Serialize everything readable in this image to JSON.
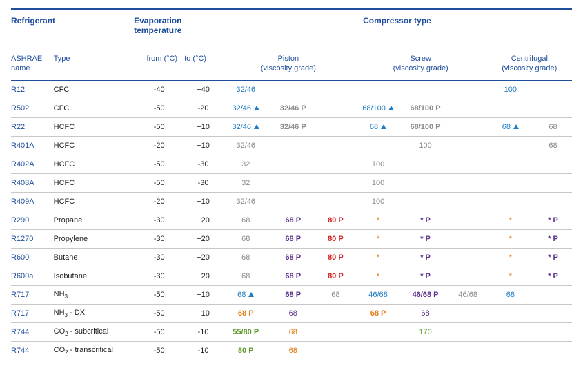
{
  "headers": {
    "refrigerant": "Refrigerant",
    "evap": "Evaporation\ntemperature",
    "comp": "Compressor type",
    "ashrae": "ASHRAE\nname",
    "type": "Type",
    "from": "from (°C)",
    "to": "to (°C)",
    "piston": "Piston\n(viscosity grade)",
    "screw": "Screw\n(viscosity grade)",
    "centrifugal": "Centrifugal\n(viscosity grade)"
  },
  "rows": [
    {
      "name": "R12",
      "type": "CFC",
      "from": "-40",
      "to": "+40",
      "p": [
        {
          "t": "32/46",
          "c": "blue"
        }
      ],
      "s": [],
      "c": [
        {
          "t": "100",
          "c": "blue"
        }
      ]
    },
    {
      "name": "R502",
      "type": "CFC",
      "from": "-50",
      "to": "-20",
      "p": [
        {
          "t": "32/46",
          "c": "blue",
          "tri": true
        },
        {
          "t": "32/46 P",
          "c": "grey",
          "b": true
        }
      ],
      "s": [
        {
          "t": "68/100",
          "c": "blue",
          "tri": true
        },
        {
          "t": "68/100 P",
          "c": "grey",
          "b": true
        }
      ],
      "c": []
    },
    {
      "name": "R22",
      "type": "HCFC",
      "from": "-50",
      "to": "+10",
      "p": [
        {
          "t": "32/46",
          "c": "blue",
          "tri": true
        },
        {
          "t": "32/46 P",
          "c": "grey",
          "b": true
        }
      ],
      "s": [
        {
          "t": "68",
          "c": "blue",
          "tri": true
        },
        {
          "t": "68/100 P",
          "c": "grey",
          "b": true
        }
      ],
      "c": [
        {
          "t": "68",
          "c": "blue",
          "tri": true
        },
        {
          "t": "68",
          "c": "grey"
        }
      ]
    },
    {
      "name": "R401A",
      "type": "HCFC",
      "from": "-20",
      "to": "+10",
      "p": [
        {
          "t": "32/46",
          "c": "grey"
        }
      ],
      "s": [
        null,
        {
          "t": "100",
          "c": "grey"
        }
      ],
      "c": [
        null,
        {
          "t": "68",
          "c": "grey"
        }
      ]
    },
    {
      "name": "R402A",
      "type": "HCFC",
      "from": "-50",
      "to": "-30",
      "p": [
        {
          "t": "32",
          "c": "grey"
        }
      ],
      "s": [
        {
          "t": "100",
          "c": "grey"
        }
      ],
      "c": []
    },
    {
      "name": "R408A",
      "type": "HCFC",
      "from": "-50",
      "to": "-30",
      "p": [
        {
          "t": "32",
          "c": "grey"
        }
      ],
      "s": [
        {
          "t": "100",
          "c": "grey"
        }
      ],
      "c": []
    },
    {
      "name": "R409A",
      "type": "HCFC",
      "from": "-20",
      "to": "+10",
      "p": [
        {
          "t": "32/46",
          "c": "grey"
        }
      ],
      "s": [
        {
          "t": "100",
          "c": "grey"
        }
      ],
      "c": []
    },
    {
      "name": "R290",
      "type": "Propane",
      "from": "-30",
      "to": "+20",
      "p": [
        {
          "t": "68",
          "c": "grey"
        },
        {
          "t": "68 P",
          "c": "purple",
          "b": true
        },
        {
          "t": "80 P",
          "c": "red",
          "b": true
        }
      ],
      "s": [
        {
          "t": "*",
          "c": "orange"
        },
        {
          "t": "* P",
          "c": "purple",
          "b": true
        }
      ],
      "c": [
        {
          "t": "*",
          "c": "orange"
        },
        {
          "t": "* P",
          "c": "purple",
          "b": true
        }
      ]
    },
    {
      "name": "R1270",
      "type": "Propylene",
      "from": "-30",
      "to": "+20",
      "p": [
        {
          "t": "68",
          "c": "grey"
        },
        {
          "t": "68 P",
          "c": "purple",
          "b": true
        },
        {
          "t": "80 P",
          "c": "red",
          "b": true
        }
      ],
      "s": [
        {
          "t": "*",
          "c": "orange"
        },
        {
          "t": "* P",
          "c": "purple",
          "b": true
        }
      ],
      "c": [
        {
          "t": "*",
          "c": "orange"
        },
        {
          "t": "* P",
          "c": "purple",
          "b": true
        }
      ]
    },
    {
      "name": "R600",
      "type": "Butane",
      "from": "-30",
      "to": "+20",
      "p": [
        {
          "t": "68",
          "c": "grey"
        },
        {
          "t": "68 P",
          "c": "purple",
          "b": true
        },
        {
          "t": "80 P",
          "c": "red",
          "b": true
        }
      ],
      "s": [
        {
          "t": "*",
          "c": "orange"
        },
        {
          "t": "* P",
          "c": "purple",
          "b": true
        }
      ],
      "c": [
        {
          "t": "*",
          "c": "orange"
        },
        {
          "t": "* P",
          "c": "purple",
          "b": true
        }
      ]
    },
    {
      "name": "R600a",
      "type": "Isobutane",
      "from": "-30",
      "to": "+20",
      "p": [
        {
          "t": "68",
          "c": "grey"
        },
        {
          "t": "68 P",
          "c": "purple",
          "b": true
        },
        {
          "t": "80 P",
          "c": "red",
          "b": true
        }
      ],
      "s": [
        {
          "t": "*",
          "c": "orange"
        },
        {
          "t": "* P",
          "c": "purple",
          "b": true
        }
      ],
      "c": [
        {
          "t": "*",
          "c": "orange"
        },
        {
          "t": "* P",
          "c": "purple",
          "b": true
        }
      ]
    },
    {
      "name": "R717",
      "type": "NH<sub>3</sub>",
      "from": "-50",
      "to": "+10",
      "p": [
        {
          "t": "68",
          "c": "blue",
          "tri": true
        },
        {
          "t": "68 P",
          "c": "purple",
          "b": true
        },
        {
          "t": "68",
          "c": "grey"
        }
      ],
      "s": [
        {
          "t": "46/68",
          "c": "blue"
        },
        {
          "t": "46/68 P",
          "c": "purple",
          "b": true
        },
        {
          "t": "46/68",
          "c": "grey"
        }
      ],
      "c": [
        {
          "t": "68",
          "c": "blue"
        }
      ]
    },
    {
      "name": "R717",
      "type": "NH<sub>3</sub> - DX",
      "from": "-50",
      "to": "+10",
      "p": [
        {
          "t": "68 P",
          "c": "orange",
          "b": true
        },
        {
          "t": "68",
          "c": "purple"
        }
      ],
      "s": [
        {
          "t": "68 P",
          "c": "orange",
          "b": true
        },
        {
          "t": "68",
          "c": "purple"
        }
      ],
      "c": []
    },
    {
      "name": "R744",
      "type": "CO<sub>2</sub> - subcritical",
      "from": "-50",
      "to": "-10",
      "p": [
        {
          "t": "55/80 P",
          "c": "green",
          "b": true
        },
        {
          "t": "68",
          "c": "orange"
        }
      ],
      "s": [
        null,
        {
          "t": "170",
          "c": "green"
        }
      ],
      "c": []
    },
    {
      "name": "R744",
      "type": "CO<sub>2</sub> - transcritical",
      "from": "-50",
      "to": "-10",
      "p": [
        {
          "t": "80 P",
          "c": "green",
          "b": true
        },
        {
          "t": "68",
          "c": "orange"
        }
      ],
      "s": [],
      "c": []
    }
  ]
}
